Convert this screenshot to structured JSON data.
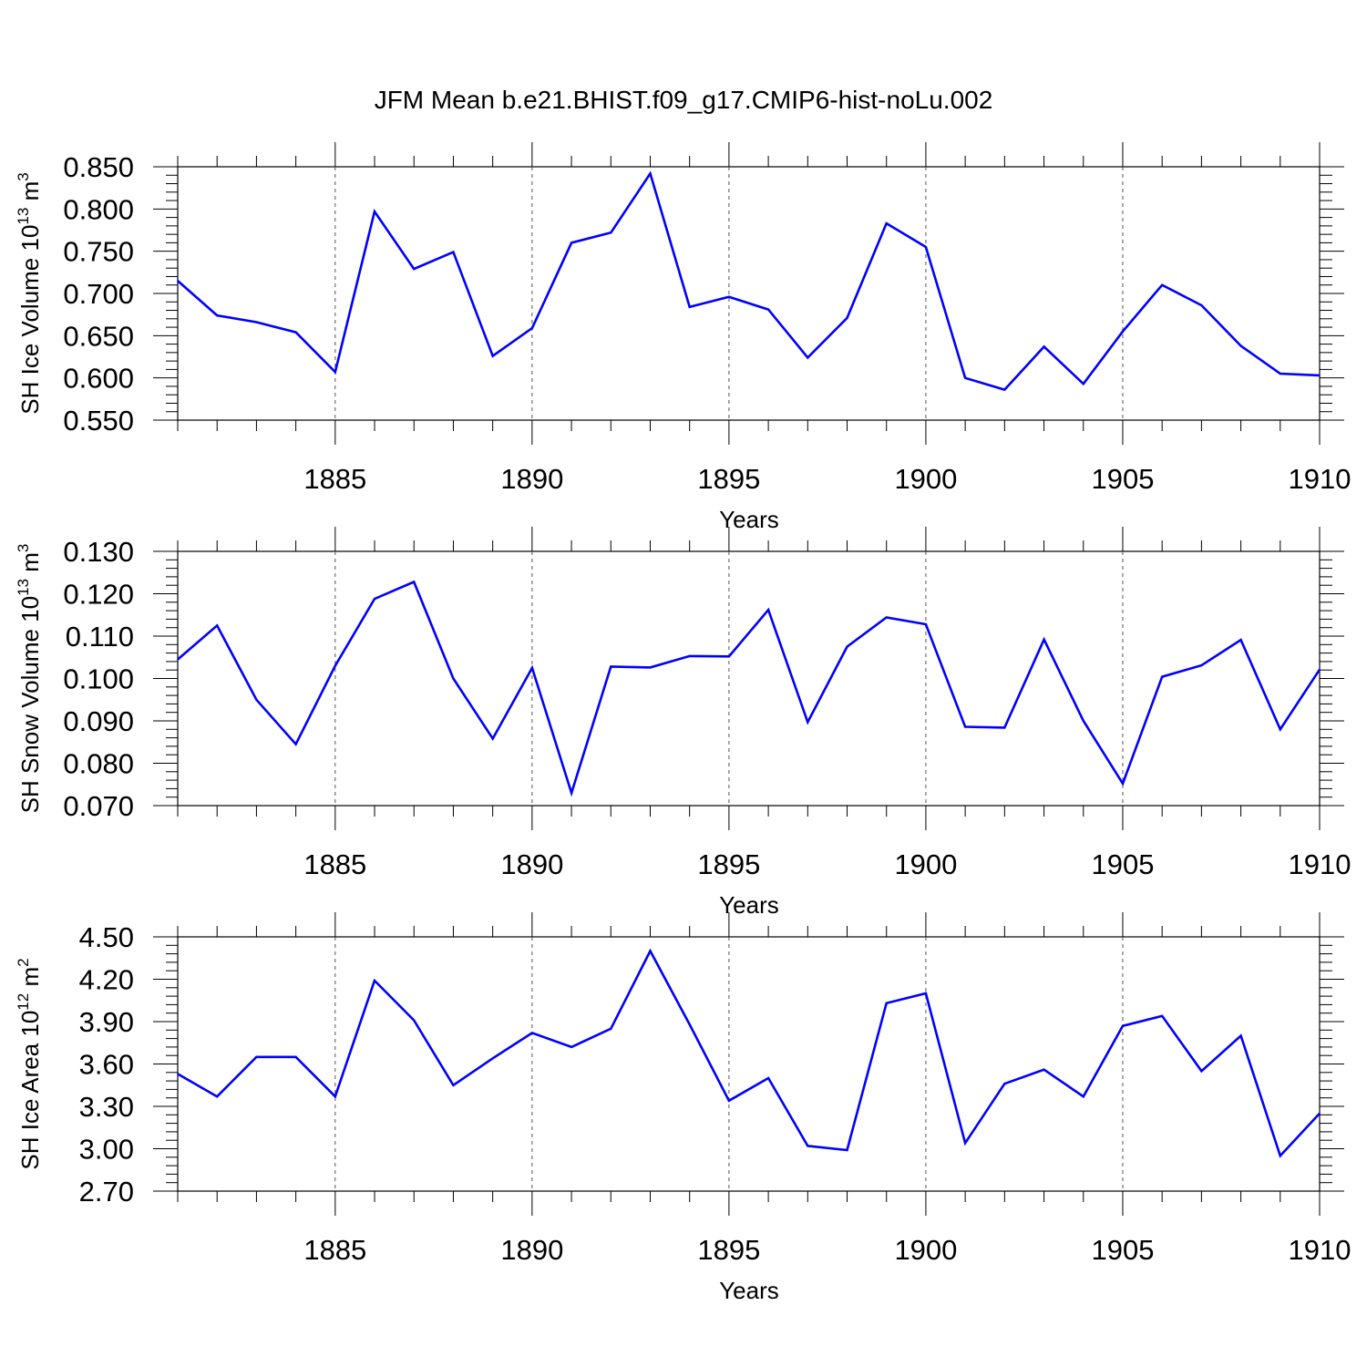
{
  "figure": {
    "title": "JFM Mean b.e21.BHIST.f09_g17.CMIP6-hist-noLu.002"
  },
  "chart_data": [
    {
      "type": "line",
      "ylabel_main": "SH Ice Volume 10",
      "ylabel_exp": "13",
      "ylabel_unit": " m",
      "ylabel_unit_exp": "3",
      "xlabel": "Years",
      "xlim": [
        1881,
        1910
      ],
      "ylim": [
        0.55,
        0.85
      ],
      "yticks": [
        "0.550",
        "0.600",
        "0.650",
        "0.700",
        "0.750",
        "0.800",
        "0.850"
      ],
      "xticks": [
        "1885",
        "1890",
        "1895",
        "1900",
        "1905",
        "1910"
      ],
      "line_color": "#0000ff",
      "years": [
        1881,
        1882,
        1883,
        1884,
        1885,
        1886,
        1887,
        1888,
        1889,
        1890,
        1891,
        1892,
        1893,
        1894,
        1895,
        1896,
        1897,
        1898,
        1899,
        1900,
        1901,
        1902,
        1903,
        1904,
        1905,
        1906,
        1907,
        1908,
        1909,
        1910
      ],
      "values": [
        0.715,
        0.674,
        0.666,
        0.654,
        0.607,
        0.797,
        0.729,
        0.749,
        0.626,
        0.659,
        0.76,
        0.772,
        0.842,
        0.684,
        0.696,
        0.681,
        0.624,
        0.671,
        0.783,
        0.755,
        0.6,
        0.586,
        0.637,
        0.593,
        0.655,
        0.71,
        0.686,
        0.638,
        0.605,
        0.603
      ]
    },
    {
      "type": "line",
      "ylabel_main": "SH Snow Volume 10",
      "ylabel_exp": "13",
      "ylabel_unit": " m",
      "ylabel_unit_exp": "3",
      "xlabel": "Years",
      "xlim": [
        1881,
        1910
      ],
      "ylim": [
        0.07,
        0.13
      ],
      "yticks": [
        "0.070",
        "0.080",
        "0.090",
        "0.100",
        "0.110",
        "0.120",
        "0.130"
      ],
      "xticks": [
        "1885",
        "1890",
        "1895",
        "1900",
        "1905",
        "1910"
      ],
      "line_color": "#0000ff",
      "years": [
        1881,
        1882,
        1883,
        1884,
        1885,
        1886,
        1887,
        1888,
        1889,
        1890,
        1891,
        1892,
        1893,
        1894,
        1895,
        1896,
        1897,
        1898,
        1899,
        1900,
        1901,
        1902,
        1903,
        1904,
        1905,
        1906,
        1907,
        1908,
        1909,
        1910
      ],
      "values": [
        0.1045,
        0.1125,
        0.095,
        0.0845,
        0.103,
        0.1188,
        0.1228,
        0.1,
        0.0858,
        0.1025,
        0.073,
        0.1028,
        0.1026,
        0.1053,
        0.1052,
        0.1162,
        0.0897,
        0.1075,
        0.1144,
        0.1128,
        0.0886,
        0.0884,
        0.1092,
        0.09,
        0.0752,
        0.1004,
        0.1031,
        0.1091,
        0.088,
        0.1021
      ]
    },
    {
      "type": "line",
      "ylabel_main": "SH Ice Area 10",
      "ylabel_exp": "12",
      "ylabel_unit": " m",
      "ylabel_unit_exp": "2",
      "xlabel": "Years",
      "xlim": [
        1881,
        1910
      ],
      "ylim": [
        2.7,
        4.5
      ],
      "yticks": [
        "2.70",
        "3.00",
        "3.30",
        "3.60",
        "3.90",
        "4.20",
        "4.50"
      ],
      "xticks": [
        "1885",
        "1890",
        "1895",
        "1900",
        "1905",
        "1910"
      ],
      "line_color": "#0000ff",
      "years": [
        1881,
        1882,
        1883,
        1884,
        1885,
        1886,
        1887,
        1888,
        1889,
        1890,
        1891,
        1892,
        1893,
        1894,
        1895,
        1896,
        1897,
        1898,
        1899,
        1900,
        1901,
        1902,
        1903,
        1904,
        1905,
        1906,
        1907,
        1908,
        1909,
        1910
      ],
      "values": [
        3.53,
        3.37,
        3.65,
        3.65,
        3.37,
        4.19,
        3.91,
        3.45,
        3.64,
        3.82,
        3.72,
        3.85,
        4.4,
        3.88,
        3.34,
        3.5,
        3.02,
        2.99,
        4.03,
        4.1,
        3.04,
        3.46,
        3.56,
        3.37,
        3.87,
        3.94,
        3.55,
        3.8,
        2.95,
        3.25
      ]
    }
  ]
}
